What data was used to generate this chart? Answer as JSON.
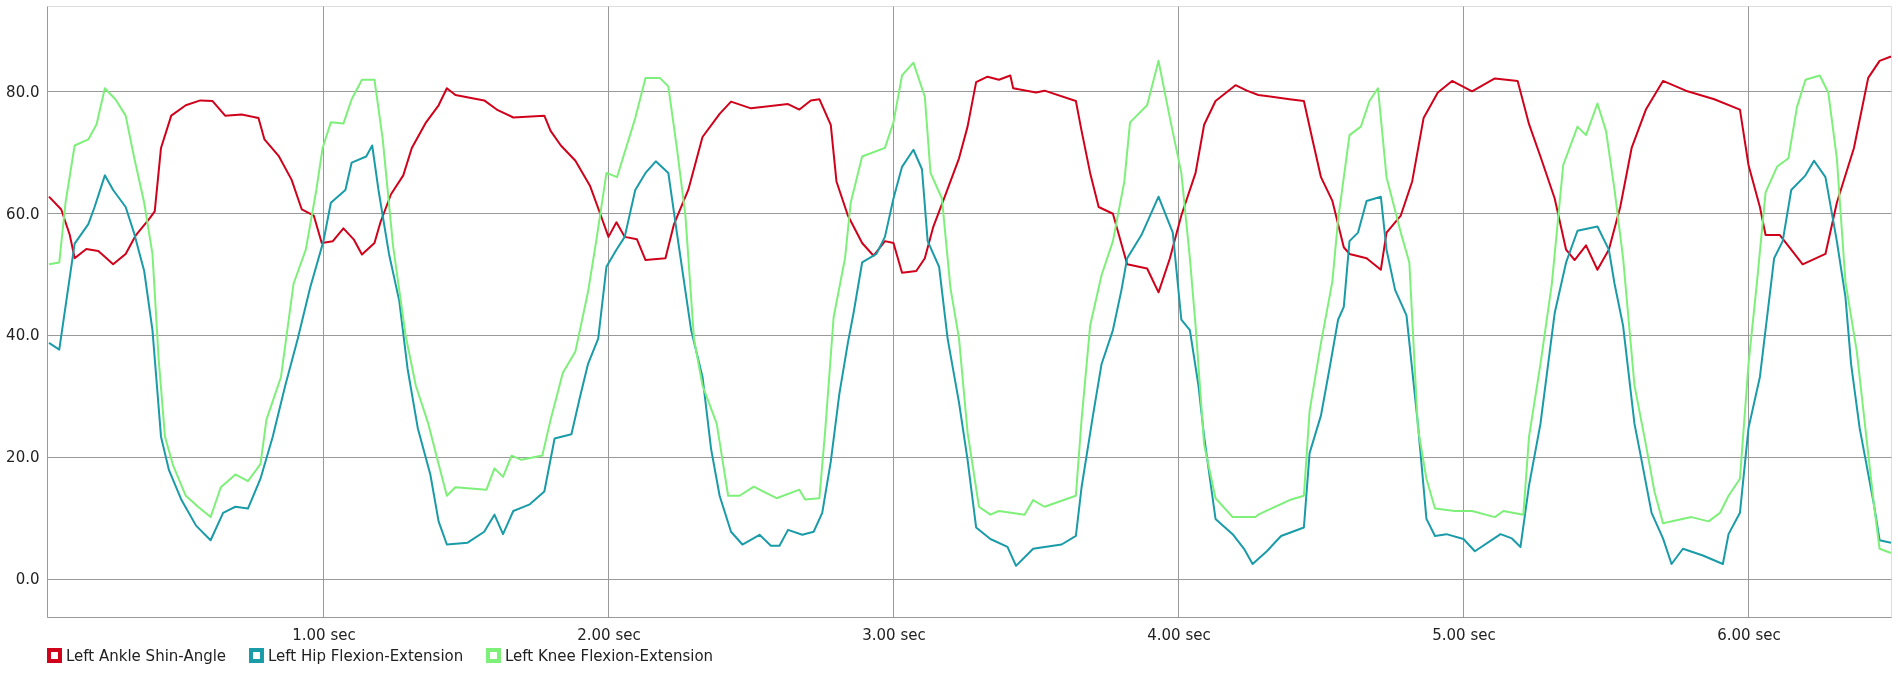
{
  "chart_data": {
    "type": "line",
    "xlim": [
      0.03,
      6.5
    ],
    "ylim": [
      -6.3,
      94
    ],
    "xticks": [
      {
        "value": 1,
        "label": "1.00 sec"
      },
      {
        "value": 2,
        "label": "2.00 sec"
      },
      {
        "value": 3,
        "label": "3.00 sec"
      },
      {
        "value": 4,
        "label": "4.00 sec"
      },
      {
        "value": 5,
        "label": "5.00 sec"
      },
      {
        "value": 6,
        "label": "6.00 sec"
      }
    ],
    "yticks": [
      {
        "value": 0,
        "label": "0.0"
      },
      {
        "value": 20,
        "label": "20.0"
      },
      {
        "value": 40,
        "label": "40.0"
      },
      {
        "value": 60,
        "label": "60.0"
      },
      {
        "value": 80,
        "label": "80.0"
      }
    ],
    "grid": true,
    "legend": "bottom left",
    "series": [
      {
        "name": "Left Ankle Shin-Angle",
        "color": "#d0021b",
        "x": [
          0.037,
          0.08,
          0.11,
          0.127,
          0.168,
          0.21,
          0.262,
          0.306,
          0.342,
          0.386,
          0.408,
          0.43,
          0.466,
          0.517,
          0.568,
          0.611,
          0.655,
          0.713,
          0.772,
          0.793,
          0.844,
          0.888,
          0.924,
          0.966,
          0.994,
          1.033,
          1.07,
          1.106,
          1.135,
          1.179,
          1.2,
          1.237,
          1.28,
          1.31,
          1.36,
          1.404,
          1.433,
          1.463,
          1.564,
          1.608,
          1.666,
          1.775,
          1.797,
          1.833,
          1.884,
          1.935,
          1.971,
          2.0,
          2.028,
          2.057,
          2.1,
          2.13,
          2.2,
          2.23,
          2.28,
          2.33,
          2.39,
          2.43,
          2.5,
          2.63,
          2.67,
          2.71,
          2.74,
          2.78,
          2.8,
          2.84,
          2.89,
          2.93,
          2.97,
          3.0,
          3.03,
          3.08,
          3.11,
          3.14,
          3.18,
          3.23,
          3.26,
          3.29,
          3.33,
          3.37,
          3.41,
          3.42,
          3.5,
          3.53,
          3.64,
          3.66,
          3.69,
          3.72,
          3.77,
          3.82,
          3.89,
          3.93,
          3.97,
          4.01,
          4.06,
          4.09,
          4.13,
          4.2,
          4.24,
          4.28,
          4.39,
          4.44,
          4.47,
          4.5,
          4.54,
          4.58,
          4.6,
          4.66,
          4.71,
          4.73,
          4.78,
          4.82,
          4.86,
          4.91,
          4.96,
          5.03,
          5.11,
          5.19,
          5.23,
          5.27,
          5.32,
          5.36,
          5.39,
          5.43,
          5.47,
          5.51,
          5.55,
          5.59,
          5.64,
          5.7,
          5.78,
          5.88,
          5.97,
          6.0,
          6.04,
          6.06,
          6.11,
          6.19,
          6.27,
          6.31,
          6.37,
          6.42,
          6.46,
          6.5
        ],
        "values": [
          62.7,
          60.6,
          56.4,
          52.6,
          54.1,
          53.8,
          51.6,
          53.3,
          56.4,
          58.9,
          60.3,
          70.7,
          76,
          77.7,
          78.5,
          78.4,
          76,
          76.2,
          75.6,
          72.1,
          69.3,
          65.5,
          60.6,
          59.6,
          55.1,
          55.4,
          57.5,
          55.7,
          53.2,
          55.1,
          58.5,
          63.1,
          66.2,
          70.7,
          74.9,
          77.7,
          80.5,
          79.4,
          78.5,
          77,
          75.7,
          76,
          73.5,
          71.1,
          68.6,
          64.5,
          59.9,
          56.1,
          58.5,
          56.1,
          55.7,
          52.3,
          52.6,
          58.2,
          63.8,
          72.5,
          76.3,
          78.3,
          77.2,
          77.9,
          77,
          78.5,
          78.7,
          74.5,
          65.2,
          59.6,
          55.1,
          53,
          55.4,
          55.1,
          50.2,
          50.5,
          52.6,
          57.8,
          62.7,
          69,
          74.2,
          81.5,
          82.4,
          81.9,
          82.6,
          80.5,
          79.8,
          80.1,
          78.4,
          73.5,
          66.6,
          61,
          59.9,
          51.6,
          50.9,
          47,
          52.6,
          59.6,
          66.6,
          74.5,
          78.4,
          81,
          80.1,
          79.4,
          78.7,
          78.4,
          72.1,
          65.9,
          62,
          54.4,
          53.3,
          52.6,
          50.7,
          56.8,
          59.6,
          65.2,
          75.6,
          79.8,
          81.7,
          80,
          82.1,
          81.7,
          74.6,
          69.3,
          62.4,
          54,
          52.3,
          54.7,
          50.7,
          54,
          61,
          70.7,
          77,
          81.7,
          80.1,
          78.7,
          77,
          67.9,
          61,
          56.4,
          56.4,
          51.6,
          53.3,
          61.7,
          70.7,
          82.2,
          85,
          85.7
        ]
      },
      {
        "name": "Left Hip Flexion-Extension",
        "color": "#1a9ba8",
        "x": [
          0.037,
          0.073,
          0.1,
          0.127,
          0.175,
          0.197,
          0.233,
          0.262,
          0.306,
          0.335,
          0.371,
          0.4,
          0.43,
          0.458,
          0.502,
          0.553,
          0.604,
          0.648,
          0.691,
          0.735,
          0.779,
          0.822,
          0.866,
          0.91,
          0.953,
          1.0,
          1.026,
          1.077,
          1.099,
          1.15,
          1.171,
          1.193,
          1.23,
          1.266,
          1.295,
          1.331,
          1.375,
          1.404,
          1.433,
          1.506,
          1.564,
          1.6,
          1.63,
          1.666,
          1.724,
          1.775,
          1.811,
          1.87,
          1.899,
          1.928,
          1.964,
          1.993,
          2.028,
          2.057,
          2.094,
          2.13,
          2.166,
          2.21,
          2.24,
          2.29,
          2.33,
          2.36,
          2.39,
          2.43,
          2.47,
          2.53,
          2.57,
          2.6,
          2.63,
          2.68,
          2.72,
          2.75,
          2.78,
          2.81,
          2.84,
          2.86,
          2.89,
          2.94,
          2.97,
          3.0,
          3.03,
          3.07,
          3.1,
          3.12,
          3.16,
          3.19,
          3.23,
          3.26,
          3.29,
          3.34,
          3.4,
          3.43,
          3.49,
          3.53,
          3.59,
          3.64,
          3.66,
          3.7,
          3.73,
          3.77,
          3.8,
          3.82,
          3.87,
          3.93,
          3.98,
          4.01,
          4.04,
          4.07,
          4.09,
          4.13,
          4.19,
          4.23,
          4.26,
          4.31,
          4.36,
          4.44,
          4.46,
          4.5,
          4.53,
          4.56,
          4.58,
          4.6,
          4.63,
          4.66,
          4.71,
          4.73,
          4.76,
          4.8,
          4.84,
          4.87,
          4.9,
          4.94,
          5.0,
          5.04,
          5.13,
          5.17,
          5.2,
          5.23,
          5.27,
          5.32,
          5.36,
          5.4,
          5.47,
          5.51,
          5.53,
          5.56,
          5.6,
          5.62,
          5.66,
          5.7,
          5.73,
          5.77,
          5.84,
          5.91,
          5.93,
          5.97,
          6.0,
          6.04,
          6.09,
          6.12,
          6.15,
          6.2,
          6.23,
          6.27,
          6.31,
          6.34,
          6.36,
          6.39,
          6.44,
          6.46,
          6.5
        ],
        "values": [
          38.7,
          37.6,
          46.3,
          55,
          58.2,
          61,
          66.2,
          63.8,
          61,
          56.8,
          50.5,
          40.8,
          23.3,
          17.8,
          12.9,
          8.7,
          6.3,
          10.8,
          11.8,
          11.5,
          16.4,
          23.3,
          31.7,
          39.4,
          47.7,
          55.4,
          61.7,
          63.8,
          68.3,
          69.3,
          71.1,
          63.8,
          53.3,
          45.6,
          34.5,
          24.7,
          17.1,
          9.4,
          5.6,
          5.9,
          7.7,
          10.5,
          7.3,
          11.1,
          12.2,
          14.3,
          23,
          23.7,
          29.6,
          35.2,
          39.4,
          51.2,
          54,
          56.1,
          63.8,
          66.6,
          68.5,
          66.6,
          56.8,
          40.8,
          33.1,
          21.3,
          13.6,
          7.7,
          5.6,
          7.2,
          5.4,
          5.4,
          8,
          7.2,
          7.7,
          10.8,
          19.2,
          30.3,
          38.7,
          43.6,
          51.9,
          53.3,
          56.1,
          62.4,
          67.6,
          70.4,
          67.2,
          55.4,
          51.2,
          39.4,
          28.9,
          19.5,
          8.4,
          6.5,
          5.2,
          2.1,
          4.9,
          5.2,
          5.6,
          7,
          15,
          26.8,
          35.2,
          40.8,
          47.4,
          52.6,
          56.4,
          62.7,
          56.8,
          42.5,
          40.8,
          31.7,
          23.3,
          9.8,
          7.3,
          4.9,
          2.4,
          4.5,
          7,
          8.4,
          20.6,
          26.8,
          34.5,
          42.5,
          44.6,
          55.4,
          56.8,
          62,
          62.7,
          54,
          47.4,
          43.2,
          25.4,
          9.8,
          7,
          7.3,
          6.5,
          4.5,
          7.3,
          6.6,
          5.2,
          15.3,
          25.4,
          43.6,
          51.9,
          57.1,
          57.8,
          54,
          48.4,
          41.5,
          25.4,
          20.6,
          10.8,
          6.6,
          2.4,
          4.9,
          3.8,
          2.4,
          7.3,
          10.8,
          24.7,
          33.1,
          52.6,
          55.4,
          63.8,
          66.2,
          68.6,
          65.9,
          55.4,
          46.3,
          35.2,
          24.7,
          12.2,
          6.3,
          5.9
        ]
      },
      {
        "name": "Left Knee Flexion-Extension",
        "color": "#7ef07a",
        "x": [
          0.037,
          0.073,
          0.095,
          0.127,
          0.175,
          0.204,
          0.233,
          0.27,
          0.306,
          0.335,
          0.371,
          0.4,
          0.422,
          0.444,
          0.473,
          0.517,
          0.56,
          0.604,
          0.64,
          0.691,
          0.735,
          0.779,
          0.8,
          0.851,
          0.895,
          0.938,
          0.975,
          0.997,
          1.026,
          1.07,
          1.099,
          1.135,
          1.179,
          1.208,
          1.244,
          1.288,
          1.324,
          1.368,
          1.404,
          1.433,
          1.463,
          1.572,
          1.6,
          1.63,
          1.66,
          1.695,
          1.768,
          1.797,
          1.84,
          1.884,
          1.928,
          1.957,
          1.993,
          2.03,
          2.057,
          2.094,
          2.13,
          2.18,
          2.21,
          2.24,
          2.27,
          2.3,
          2.33,
          2.38,
          2.42,
          2.46,
          2.51,
          2.59,
          2.67,
          2.69,
          2.74,
          2.76,
          2.79,
          2.83,
          2.85,
          2.89,
          2.97,
          3.0,
          3.03,
          3.07,
          3.11,
          3.13,
          3.17,
          3.2,
          3.23,
          3.26,
          3.3,
          3.34,
          3.37,
          3.46,
          3.49,
          3.53,
          3.64,
          3.66,
          3.69,
          3.73,
          3.77,
          3.81,
          3.83,
          3.89,
          3.93,
          3.97,
          4.01,
          4.04,
          4.06,
          4.09,
          4.13,
          4.19,
          4.27,
          4.28,
          4.39,
          4.44,
          4.46,
          4.5,
          4.54,
          4.56,
          4.6,
          4.64,
          4.67,
          4.7,
          4.73,
          4.78,
          4.81,
          4.84,
          4.87,
          4.9,
          4.97,
          5.03,
          5.11,
          5.14,
          5.21,
          5.23,
          5.27,
          5.31,
          5.35,
          5.4,
          5.43,
          5.47,
          5.5,
          5.53,
          5.56,
          5.6,
          5.64,
          5.67,
          5.7,
          5.8,
          5.86,
          5.9,
          5.93,
          5.97,
          6.0,
          6.03,
          6.06,
          6.1,
          6.14,
          6.17,
          6.2,
          6.25,
          6.28,
          6.31,
          6.34,
          6.38,
          6.41,
          6.44,
          6.46,
          6.5
        ],
        "values": [
          51.6,
          51.9,
          61.7,
          71.1,
          72.1,
          74.6,
          80.5,
          78.7,
          76,
          69.3,
          61.7,
          53.3,
          35.9,
          23.3,
          18.5,
          13.6,
          11.8,
          10.1,
          15,
          17.1,
          16,
          18.8,
          26.1,
          33.1,
          48.4,
          54,
          63.8,
          70.7,
          74.9,
          74.7,
          78.7,
          81.9,
          81.9,
          72.1,
          54.7,
          40,
          31.7,
          25.4,
          18.8,
          13.6,
          15,
          14.6,
          18.1,
          16.7,
          20.2,
          19.5,
          20.2,
          26.1,
          33.8,
          37.3,
          47,
          55.4,
          66.6,
          65.9,
          70,
          75.6,
          82.2,
          82.2,
          80.8,
          70.7,
          59.6,
          39.4,
          31.7,
          25.4,
          13.6,
          13.6,
          15.1,
          13.2,
          14.6,
          13,
          13.2,
          24,
          42.9,
          52.6,
          61.7,
          69.3,
          70.7,
          74.9,
          82.6,
          84.7,
          79.1,
          66.6,
          62.4,
          47.7,
          39.4,
          24,
          11.8,
          10.5,
          11.1,
          10.5,
          12.9,
          11.8,
          13.6,
          26.1,
          41.5,
          49.8,
          55.4,
          65.2,
          74.9,
          77.7,
          85,
          75.6,
          66.6,
          52.6,
          41.5,
          22,
          13.2,
          10.1,
          10.1,
          10.5,
          12.9,
          13.6,
          27.5,
          38.7,
          48.8,
          58.9,
          72.8,
          74.2,
          78.4,
          80.5,
          65.9,
          56.8,
          51.9,
          24.7,
          16.4,
          11.5,
          11.1,
          11.1,
          10.1,
          11.1,
          10.5,
          23.3,
          35.2,
          48.4,
          67.9,
          74.2,
          72.8,
          78,
          73.5,
          63.8,
          52.6,
          31.7,
          22,
          14.3,
          9.1,
          10.1,
          9.4,
          10.8,
          13.6,
          16.4,
          35.2,
          48.8,
          63.4,
          67.6,
          69,
          77.4,
          81.9,
          82.6,
          79.8,
          69,
          48.8,
          37.3,
          24.7,
          12.2,
          4.9,
          4.2
        ]
      }
    ]
  }
}
